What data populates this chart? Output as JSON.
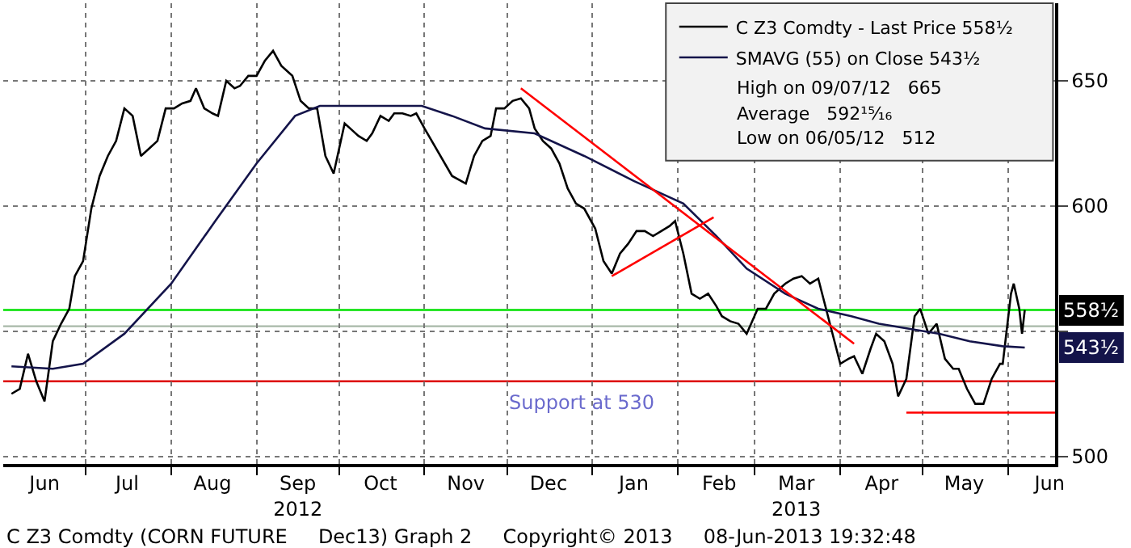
{
  "chart_data": {
    "type": "line",
    "xlim": [
      "2012-06-01",
      "2013-06-18"
    ],
    "ylim": [
      497,
      681
    ],
    "xticks": [
      {
        "value": "2012-06-16",
        "label": "Jun"
      },
      {
        "value": "2012-07-16",
        "label": "Jul"
      },
      {
        "value": "2012-08-16",
        "label": "Aug"
      },
      {
        "value": "2012-09-16",
        "label": "Sep\n2012"
      },
      {
        "value": "2012-10-16",
        "label": "Oct"
      },
      {
        "value": "2012-11-16",
        "label": "Nov"
      },
      {
        "value": "2012-12-16",
        "label": "Dec"
      },
      {
        "value": "2013-01-16",
        "label": "Jan"
      },
      {
        "value": "2013-02-16",
        "label": "Feb"
      },
      {
        "value": "2013-03-16",
        "label": "Mar\n2013"
      },
      {
        "value": "2013-04-16",
        "label": "Apr"
      },
      {
        "value": "2013-05-16",
        "label": "May"
      },
      {
        "value": "2013-06-16",
        "label": "Jun"
      }
    ],
    "yticks": [
      500,
      {
        "value": 550,
        "label": null
      },
      600,
      650
    ],
    "grid": true,
    "legend": "top right",
    "marker": "none",
    "line_style": "solid",
    "series": [
      {
        "name": "C Z3 Comdty - Last Price 558½",
        "color": "#000000",
        "x": [
          "2012-06-04",
          "2012-06-07",
          "2012-06-10",
          "2012-06-13",
          "2012-06-16",
          "2012-06-19",
          "2012-06-22",
          "2012-06-25",
          "2012-06-27",
          "2012-06-30",
          "2012-07-03",
          "2012-07-06",
          "2012-07-09",
          "2012-07-12",
          "2012-07-15",
          "2012-07-18",
          "2012-07-21",
          "2012-07-24",
          "2012-07-27",
          "2012-07-30",
          "2012-08-02",
          "2012-08-05",
          "2012-08-08",
          "2012-08-10",
          "2012-08-13",
          "2012-08-16",
          "2012-08-18",
          "2012-08-21",
          "2012-08-24",
          "2012-08-26",
          "2012-08-29",
          "2012-09-01",
          "2012-09-04",
          "2012-09-07",
          "2012-09-10",
          "2012-09-14",
          "2012-09-17",
          "2012-09-20",
          "2012-09-23",
          "2012-09-26",
          "2012-09-29",
          "2012-10-03",
          "2012-10-05",
          "2012-10-08",
          "2012-10-11",
          "2012-10-13",
          "2012-10-16",
          "2012-10-19",
          "2012-10-21",
          "2012-10-24",
          "2012-10-27",
          "2012-10-29",
          "2012-11-01",
          "2012-11-11",
          "2012-11-16",
          "2012-11-19",
          "2012-11-22",
          "2012-11-25",
          "2012-11-27",
          "2012-11-30",
          "2012-12-03",
          "2012-12-06",
          "2012-12-09",
          "2012-12-11",
          "2012-12-14",
          "2012-12-17",
          "2012-12-20",
          "2012-12-23",
          "2012-12-26",
          "2012-12-29",
          "2013-01-02",
          "2013-01-05",
          "2013-01-08",
          "2013-01-11",
          "2013-01-14",
          "2013-01-17",
          "2013-01-20",
          "2013-01-23",
          "2013-01-26",
          "2013-01-29",
          "2013-01-31",
          "2013-02-03",
          "2013-02-06",
          "2013-02-09",
          "2013-02-12",
          "2013-02-15",
          "2013-02-17",
          "2013-02-20",
          "2013-02-23",
          "2013-02-26",
          "2013-03-02",
          "2013-03-05",
          "2013-03-08",
          "2013-03-12",
          "2013-03-15",
          "2013-03-18",
          "2013-03-21",
          "2013-03-24",
          "2013-04-01",
          "2013-04-04",
          "2013-04-06",
          "2013-04-09",
          "2013-04-12",
          "2013-04-14",
          "2013-04-17",
          "2013-04-20",
          "2013-04-22",
          "2013-04-25",
          "2013-04-28",
          "2013-04-30",
          "2013-05-03",
          "2013-05-06",
          "2013-05-09",
          "2013-05-12",
          "2013-05-14",
          "2013-05-17",
          "2013-05-20",
          "2013-05-23",
          "2013-05-26",
          "2013-05-29",
          "2013-05-30",
          "2013-06-02",
          "2013-06-03",
          "2013-06-05",
          "2013-06-06",
          "2013-06-07"
        ],
        "values": [
          525,
          527,
          541,
          530,
          522,
          546,
          553,
          559,
          572,
          578,
          599,
          612,
          620,
          626,
          639,
          636,
          620,
          623,
          626,
          639,
          639,
          641,
          642,
          647,
          639,
          637,
          636,
          650,
          647,
          648,
          652,
          652,
          658,
          662,
          656,
          652,
          642,
          639,
          639,
          620,
          613,
          633,
          631,
          628,
          626,
          629,
          636,
          634,
          637,
          637,
          636,
          637,
          631,
          612,
          609,
          620,
          626,
          628,
          639,
          639,
          642,
          643,
          639,
          631,
          626,
          623,
          617,
          607,
          601,
          599,
          591,
          578,
          573,
          581,
          585,
          590,
          590,
          588,
          590,
          592,
          594,
          581,
          565,
          563,
          565,
          560,
          556,
          554,
          553,
          549,
          559,
          559,
          565,
          569,
          571,
          572,
          569,
          571,
          537,
          539,
          540,
          533,
          543,
          549,
          546,
          537,
          524,
          531,
          556,
          559,
          549,
          553,
          539,
          535,
          535,
          527,
          521,
          521,
          531,
          537,
          537,
          565,
          569,
          559,
          549,
          558.5
        ]
      },
      {
        "name": "SMAVG (55) on Close 543½",
        "color": "#14144a",
        "x": [
          "2012-06-04",
          "2012-06-19",
          "2012-06-30",
          "2012-07-15",
          "2012-08-01",
          "2012-08-17",
          "2012-09-01",
          "2012-09-15",
          "2012-09-24",
          "2012-10-09",
          "2012-10-31",
          "2012-11-11",
          "2012-11-23",
          "2012-12-11",
          "2012-12-29",
          "2013-01-16",
          "2013-02-03",
          "2013-02-15",
          "2013-02-26",
          "2013-03-12",
          "2013-03-24",
          "2013-04-05",
          "2013-04-15",
          "2013-04-26",
          "2013-05-07",
          "2013-05-18",
          "2013-05-30",
          "2013-06-07"
        ],
        "values": [
          536,
          535,
          537,
          549,
          569,
          594,
          617,
          636,
          640,
          640,
          640,
          636,
          631,
          629,
          620,
          610,
          601,
          588,
          575,
          565,
          559,
          556,
          553,
          551,
          549,
          546,
          544,
          543.5
        ]
      },
      {
        "color": "#ff0000",
        "x": [
          "2012-12-06",
          "2013-04-06"
        ],
        "values": [
          647,
          545
        ]
      },
      {
        "color": "#ff0000",
        "x": [
          "2013-01-08",
          "2013-02-14"
        ],
        "values": [
          572,
          595.5
        ]
      },
      {
        "color": "#ff0000",
        "x": [
          "2013-04-25",
          "2013-06-18"
        ],
        "values": [
          517.5,
          517.5
        ]
      }
    ],
    "ref_lines": [
      {
        "axis": "y",
        "value": 558.5,
        "color": "#00e000"
      },
      {
        "axis": "y",
        "value": 552,
        "color": "#a8b8a8"
      },
      {
        "axis": "y",
        "value": 530,
        "label": "Support at 530",
        "color": "#dd0000"
      }
    ],
    "annotations": [
      "High on 09/07/12   665",
      "Average   592¹⁵⁄₁₆",
      "Low on 06/05/12   512",
      "C Z3 Comdty (CORN FUTURE     Dec13) Graph 2     Copyright© 2013     08-Jun-2013 19:32:48",
      {
        "text": "558½",
        "y": 558.5
      },
      {
        "text": "543½",
        "y": 543.5
      }
    ]
  }
}
